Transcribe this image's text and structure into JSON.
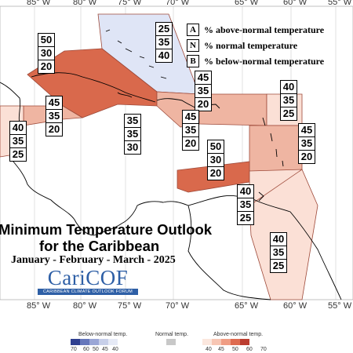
{
  "map": {
    "longitudes_top": [
      "85° W",
      "80° W",
      "75° W",
      "70° W",
      "65° W",
      "60° W",
      "55° W"
    ],
    "longitudes_bottom": [
      "85° W",
      "80° W",
      "75° W",
      "70° W",
      "65° W",
      "60° W",
      "55° W"
    ]
  },
  "legend_keys": [
    {
      "key": "A",
      "text": "% above-normal temperature"
    },
    {
      "key": "N",
      "text": "% normal temperature"
    },
    {
      "key": "B",
      "text": "% below-normal temperature"
    }
  ],
  "regions": [
    {
      "id": "bahamas",
      "A": "25",
      "N": "35",
      "B": "40",
      "color": "#dfe5f6"
    },
    {
      "id": "cuba",
      "A": "50",
      "N": "30",
      "B": "20",
      "color": "#d9694c"
    },
    {
      "id": "jamaica-south",
      "A": "45",
      "N": "35",
      "B": "20",
      "color": "#efb5a2"
    },
    {
      "id": "hispaniola",
      "A": "45",
      "N": "35",
      "B": "20",
      "color": "#efb5a2"
    },
    {
      "id": "central-caribbean",
      "A": "35",
      "N": "35",
      "B": "30",
      "color": "#ffffff"
    },
    {
      "id": "south-hispaniola",
      "A": "45",
      "N": "35",
      "B": "20",
      "color": "#efb5a2"
    },
    {
      "id": "belize",
      "A": "40",
      "N": "35",
      "B": "25",
      "color": "#fbe0d6"
    },
    {
      "id": "northern-leewards",
      "A": "40",
      "N": "35",
      "B": "25",
      "color": "#fbe0d6"
    },
    {
      "id": "leewards",
      "A": "45",
      "N": "35",
      "B": "20",
      "color": "#efb5a2"
    },
    {
      "id": "puerto-rico-south",
      "A": "50",
      "N": "30",
      "B": "20",
      "color": "#d9694c"
    },
    {
      "id": "abc-islands",
      "A": "40",
      "N": "35",
      "B": "25",
      "color": "#fbe0d6"
    },
    {
      "id": "guianas",
      "A": "40",
      "N": "35",
      "B": "25",
      "color": "#fbe0d6"
    }
  ],
  "title": {
    "line1": "Minimum Temperature Outlook",
    "line2": "for the Caribbean",
    "line3": "January - February - March - 2025"
  },
  "logo": {
    "name": "CariCOF",
    "subtitle": "CARIBBEAN CLIMATE OUTLOOK FORUM"
  },
  "colorbar": {
    "below_title": "Below-normal temp.",
    "normal_title": "Normal temp.",
    "above_title": "Above-normal temp.",
    "below_colors": [
      "#2f3f8f",
      "#6677bb",
      "#9aa6d6",
      "#c7cfe9",
      "#e6eaf6"
    ],
    "below_labels": [
      "70",
      "60",
      "50",
      "45",
      "40"
    ],
    "normal_color": "#c8c8c8",
    "above_colors": [
      "#fbe7de",
      "#f7c6b4",
      "#ef9d84",
      "#de6b50",
      "#bb3d30"
    ],
    "above_labels": [
      "40",
      "45",
      "50",
      "60",
      "70"
    ]
  }
}
